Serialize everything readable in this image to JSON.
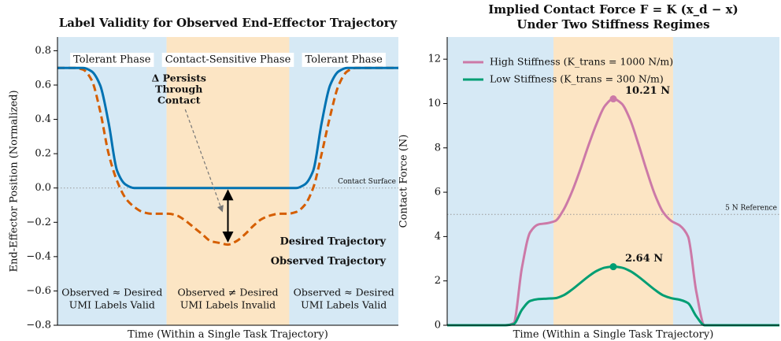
{
  "chart_data": [
    {
      "type": "line",
      "title": "Label Validity for Observed End-Effector Trajectory",
      "x_label": "Time (Within a Single Task Trajectory)",
      "y_label": "End-Effector Position (Normalized)",
      "xlim": [
        0,
        10
      ],
      "ylim": [
        -0.8,
        0.88
      ],
      "yticks": [
        {
          "value": -0.8,
          "label": "−0.8"
        },
        {
          "value": -0.6,
          "label": "−0.6"
        },
        {
          "value": -0.4,
          "label": "−0.4"
        },
        {
          "value": -0.2,
          "label": "−0.2"
        },
        {
          "value": 0,
          "label": "0.0"
        },
        0.2,
        0.4,
        0.6,
        0.8
      ],
      "grid": false,
      "legend": "lower right",
      "regions": [
        {
          "start": 0,
          "end": 3.2,
          "color": "#d6e9f5",
          "label": "Tolerant Phase",
          "label_color": "#2b4c78",
          "note": [
            "Observed ≈ Desired",
            "UMI Labels Valid"
          ]
        },
        {
          "start": 3.2,
          "end": 6.8,
          "color": "#fce5c4",
          "label": "Contact-Sensitive Phase",
          "label_color": "#b3561c",
          "note": [
            "Observed ≠ Desired",
            "UMI Labels Invalid"
          ]
        },
        {
          "start": 6.8,
          "end": 10,
          "color": "#d6e9f5",
          "label": "Tolerant Phase",
          "label_color": "#2b4c78",
          "note": [
            "Observed ≈ Desired",
            "UMI Labels Valid"
          ]
        }
      ],
      "reference_line": {
        "value": 0,
        "label": "Contact Surface"
      },
      "annotation": [
        "Δ Persists",
        "Through",
        "Contact"
      ],
      "x": [
        0,
        0.25,
        0.5,
        0.75,
        1,
        1.25,
        1.5,
        1.75,
        2,
        2.25,
        2.5,
        2.75,
        3,
        3.25,
        3.5,
        3.75,
        4,
        4.25,
        4.5,
        4.75,
        5,
        5.25,
        5.5,
        5.75,
        6,
        6.25,
        6.5,
        6.75,
        7,
        7.25,
        7.5,
        7.75,
        8,
        8.25,
        8.5,
        8.75,
        9,
        9.25,
        9.5,
        9.75,
        10
      ],
      "series": [
        {
          "name": "Desired Trajectory",
          "color": "#d55e00",
          "dash": true,
          "values": [
            0.7,
            0.7,
            0.7,
            0.69,
            0.63,
            0.45,
            0.2,
            0.04,
            -0.06,
            -0.11,
            -0.14,
            -0.15,
            -0.15,
            -0.15,
            -0.16,
            -0.19,
            -0.23,
            -0.27,
            -0.31,
            -0.32,
            -0.33,
            -0.31,
            -0.27,
            -0.22,
            -0.18,
            -0.16,
            -0.15,
            -0.15,
            -0.14,
            -0.1,
            0,
            0.2,
            0.42,
            0.6,
            0.68,
            0.7,
            0.7,
            0.7,
            0.7,
            0.7,
            0.7
          ]
        },
        {
          "name": "Observed Trajectory",
          "color": "#0072b2",
          "dash": false,
          "values": [
            0.7,
            0.7,
            0.7,
            0.7,
            0.68,
            0.6,
            0.38,
            0.1,
            0.02,
            0,
            0,
            0,
            0,
            0,
            0,
            0,
            0,
            0,
            0,
            0,
            0,
            0,
            0,
            0,
            0,
            0,
            0,
            0,
            0,
            0.02,
            0.1,
            0.38,
            0.6,
            0.68,
            0.7,
            0.7,
            0.7,
            0.7,
            0.7,
            0.7,
            0.7
          ]
        }
      ]
    },
    {
      "type": "line",
      "title": [
        "Implied Contact Force F = K (x_d − x)",
        "Under Two Stiffness Regimes"
      ],
      "x_label": "Time (Within a Single Task Trajectory)",
      "y_label": "Contact Force (N)",
      "xlim": [
        0,
        10
      ],
      "ylim": [
        0,
        13
      ],
      "yticks": [
        0,
        2,
        4,
        6,
        8,
        10,
        12
      ],
      "grid": false,
      "legend": "upper left",
      "regions": [
        {
          "start": 0,
          "end": 3.2,
          "color": "#d6e9f5"
        },
        {
          "start": 3.2,
          "end": 6.8,
          "color": "#fce5c4"
        },
        {
          "start": 6.8,
          "end": 10,
          "color": "#d6e9f5"
        }
      ],
      "reference_line": {
        "value": 5,
        "label": "5 N Reference"
      },
      "x": [
        0,
        0.25,
        0.5,
        0.75,
        1,
        1.25,
        1.5,
        1.75,
        2,
        2.25,
        2.5,
        2.75,
        3,
        3.25,
        3.5,
        3.75,
        4,
        4.25,
        4.5,
        4.75,
        5,
        5.25,
        5.5,
        5.75,
        6,
        6.25,
        6.5,
        6.75,
        7,
        7.25,
        7.5,
        7.75,
        8,
        8.25,
        8.5,
        8.75,
        9,
        9.25,
        9.5,
        9.75,
        10
      ],
      "series": [
        {
          "name": "High Stiffness (K_trans = 1000 N/m)",
          "color": "#cc79a7",
          "dash": false,
          "values": [
            0,
            0,
            0,
            0,
            0,
            0,
            0,
            0,
            0.1,
            2.6,
            4.2,
            4.55,
            4.6,
            4.7,
            5.2,
            6,
            7,
            8.1,
            9.1,
            9.9,
            10.21,
            10,
            9.3,
            8.2,
            7,
            5.9,
            5.1,
            4.7,
            4.5,
            4,
            1.5,
            0,
            0,
            0,
            0,
            0,
            0,
            0,
            0,
            0,
            0
          ],
          "value_labels": [
            null,
            null,
            null,
            null,
            null,
            null,
            null,
            null,
            null,
            null,
            null,
            null,
            null,
            null,
            null,
            null,
            null,
            null,
            null,
            null,
            "10.21 N",
            null,
            null,
            null,
            null,
            null,
            null,
            null,
            null,
            null,
            null,
            null,
            null,
            null,
            null,
            null,
            null,
            null,
            null,
            null,
            null
          ]
        },
        {
          "name": "Low Stiffness (K_trans = 300 N/m)",
          "color": "#009e73",
          "dash": false,
          "values": [
            0,
            0,
            0,
            0,
            0,
            0,
            0,
            0,
            0.05,
            0.7,
            1.1,
            1.18,
            1.2,
            1.22,
            1.35,
            1.6,
            1.9,
            2.2,
            2.45,
            2.6,
            2.64,
            2.6,
            2.45,
            2.2,
            1.9,
            1.6,
            1.35,
            1.22,
            1.15,
            1,
            0.4,
            0,
            0,
            0,
            0,
            0,
            0,
            0,
            0,
            0,
            0
          ],
          "value_labels": [
            null,
            null,
            null,
            null,
            null,
            null,
            null,
            null,
            null,
            null,
            null,
            null,
            null,
            null,
            null,
            null,
            null,
            null,
            null,
            null,
            "2.64 N",
            null,
            null,
            null,
            null,
            null,
            null,
            null,
            null,
            null,
            null,
            null,
            null,
            null,
            null,
            null,
            null,
            null,
            null,
            null,
            null
          ]
        }
      ]
    }
  ]
}
